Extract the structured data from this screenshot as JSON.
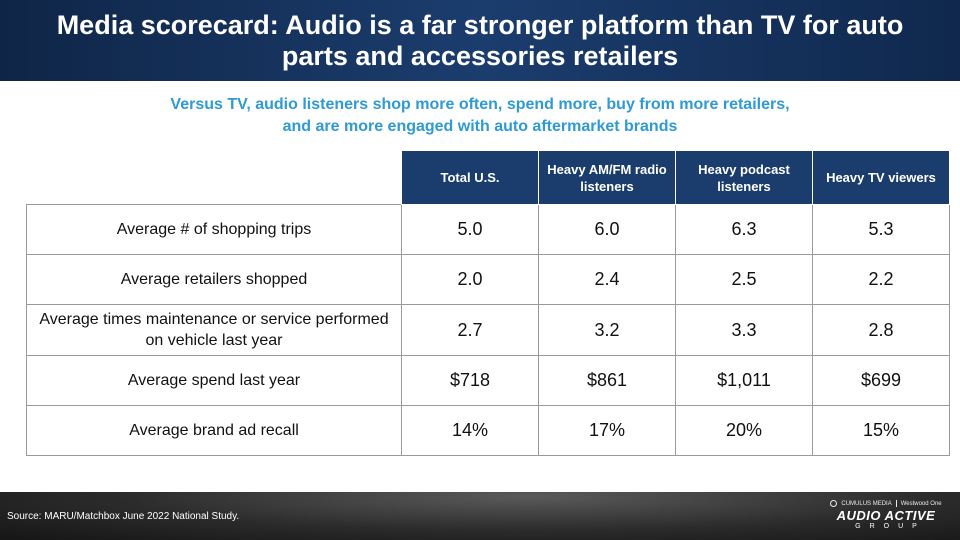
{
  "header": {
    "title": "Media scorecard: Audio is a far stronger platform than TV for auto parts and accessories retailers"
  },
  "subtitle": {
    "line1": "Versus TV, audio listeners shop more often, spend more, buy from more retailers,",
    "line2": "and are more engaged with auto aftermarket brands"
  },
  "table": {
    "columns": [
      "Total U.S.",
      "Heavy AM/FM radio listeners",
      "Heavy podcast listeners",
      "Heavy TV viewers"
    ],
    "rows": [
      {
        "label": "Average # of shopping trips",
        "values": [
          "5.0",
          "6.0",
          "6.3",
          "5.3"
        ]
      },
      {
        "label": "Average retailers shopped",
        "values": [
          "2.0",
          "2.4",
          "2.5",
          "2.2"
        ]
      },
      {
        "label": "Average times maintenance or service performed on vehicle last year",
        "values": [
          "2.7",
          "3.2",
          "3.3",
          "2.8"
        ]
      },
      {
        "label": "Average spend last year",
        "values": [
          "$718",
          "$861",
          "$1,011",
          "$699"
        ]
      },
      {
        "label": "Average brand ad recall",
        "values": [
          "14%",
          "17%",
          "20%",
          "15%"
        ]
      }
    ]
  },
  "footer": {
    "source": "Source: MARU/Matchbox June 2022 National Study.",
    "logo_top_left": "CUMULUS MEDIA",
    "logo_top_right": "Westwood One",
    "logo_main": "AUDIO ACTIVE",
    "logo_sub": "GROUP"
  },
  "colors": {
    "header_bg": "#1b3d6e",
    "subtitle": "#2e9ad6",
    "table_header_bg": "#1b3d6e"
  }
}
